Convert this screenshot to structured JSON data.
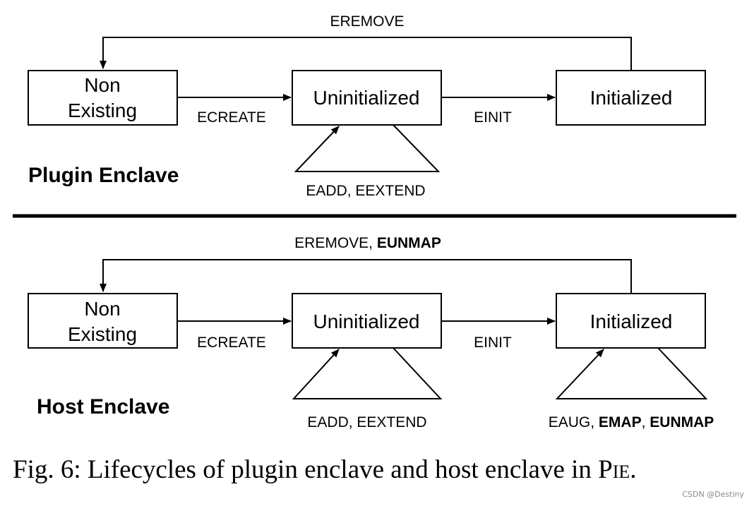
{
  "plugin_enclave": {
    "title": "Plugin Enclave",
    "states": {
      "non_existing_line1": "Non",
      "non_existing_line2": "Existing",
      "uninitialized": "Uninitialized",
      "initialized": "Initialized"
    },
    "transitions": {
      "ecreate": "ECREATE",
      "einit": "EINIT",
      "eremove": "EREMOVE",
      "uninit_loop": "EADD, EEXTEND"
    }
  },
  "host_enclave": {
    "title": "Host Enclave",
    "states": {
      "non_existing_line1": "Non",
      "non_existing_line2": "Existing",
      "uninitialized": "Uninitialized",
      "initialized": "Initialized"
    },
    "transitions": {
      "ecreate": "ECREATE",
      "einit": "EINIT",
      "eremove_normal": "EREMOVE, ",
      "eremove_bold": "EUNMAP",
      "uninit_loop": "EADD, EEXTEND",
      "init_loop_normal1": "EAUG, ",
      "init_loop_bold1": "EMAP",
      "init_loop_normal2": ", ",
      "init_loop_bold2": "EUNMAP"
    }
  },
  "caption": {
    "prefix": "Fig. 6: Lifecycles of plugin enclave and host enclave in ",
    "name": "Pie",
    "suffix": "."
  },
  "watermark": "CSDN @Destiny"
}
